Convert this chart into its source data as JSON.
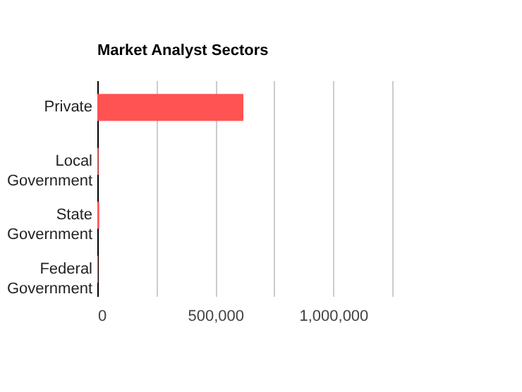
{
  "chart_data": {
    "type": "bar",
    "orientation": "horizontal",
    "title": "Market Analyst Sectors",
    "categories": [
      "Private",
      "Local Government",
      "State Government",
      "Federal Government"
    ],
    "values": [
      619000,
      5000,
      8000,
      3000
    ],
    "color": "#ff5252",
    "xlim": [
      0,
      1250000
    ],
    "xticks": [
      0,
      {
        "value": 250000,
        "label": null
      },
      {
        "value": 500000,
        "label": "500,000"
      },
      {
        "value": 750000,
        "label": null
      },
      {
        "value": 1000000,
        "label": "1,000,000"
      },
      {
        "value": 1250000,
        "label": null
      }
    ],
    "grid": "x"
  }
}
